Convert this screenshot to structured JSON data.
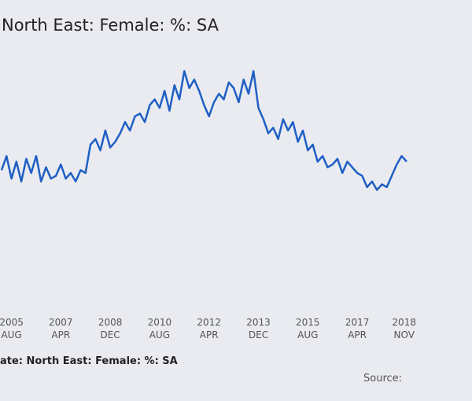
{
  "chart_data": {
    "type": "line",
    "title": "North East: Female: %: SA",
    "legend_label": "ate: North East: Female: %: SA",
    "source_label": "Source:",
    "x_ticks": [
      {
        "year": "2005",
        "month": "AUG"
      },
      {
        "year": "2007",
        "month": "APR"
      },
      {
        "year": "2008",
        "month": "DEC"
      },
      {
        "year": "2010",
        "month": "AUG"
      },
      {
        "year": "2012",
        "month": "APR"
      },
      {
        "year": "2013",
        "month": "DEC"
      },
      {
        "year": "2015",
        "month": "AUG"
      },
      {
        "year": "2017",
        "month": "APR"
      },
      {
        "year": "2018",
        "month": "NOV"
      }
    ],
    "xlim": [
      "2005-04",
      "2019-01"
    ],
    "ylim": [
      0,
      10
    ],
    "grid": false,
    "color": "#1f5fc4",
    "series": [
      {
        "x": [
          "2005-04",
          "2005-06",
          "2005-08",
          "2005-10",
          "2005-12",
          "2006-02",
          "2006-04",
          "2006-06",
          "2006-08",
          "2006-10",
          "2006-12",
          "2007-02",
          "2007-04",
          "2007-06",
          "2007-08",
          "2007-10",
          "2007-12",
          "2008-02",
          "2008-04",
          "2008-06",
          "2008-08",
          "2008-10",
          "2008-12",
          "2009-02",
          "2009-04",
          "2009-06",
          "2009-08",
          "2009-10",
          "2009-12",
          "2010-02",
          "2010-04",
          "2010-06",
          "2010-08",
          "2010-10",
          "2010-12",
          "2011-02",
          "2011-04",
          "2011-06",
          "2011-08",
          "2011-10",
          "2011-12",
          "2012-02",
          "2012-04",
          "2012-06",
          "2012-08",
          "2012-10",
          "2012-12",
          "2013-02",
          "2013-04",
          "2013-06",
          "2013-08",
          "2013-10",
          "2013-12",
          "2014-02",
          "2014-04",
          "2014-06",
          "2014-08",
          "2014-10",
          "2014-12",
          "2015-02",
          "2015-04",
          "2015-06",
          "2015-08",
          "2015-10",
          "2015-12",
          "2016-02",
          "2016-04",
          "2016-06",
          "2016-08",
          "2016-10",
          "2016-12",
          "2017-02",
          "2017-04",
          "2017-06",
          "2017-08",
          "2017-10",
          "2017-12",
          "2018-02",
          "2018-04",
          "2018-06",
          "2018-08",
          "2018-10",
          "2018-12"
        ],
        "y": [
          5.1,
          5.6,
          4.8,
          5.4,
          4.7,
          5.5,
          5.0,
          5.6,
          4.7,
          5.2,
          4.8,
          4.9,
          5.3,
          4.8,
          5.0,
          4.7,
          5.1,
          5.0,
          6.0,
          6.2,
          5.8,
          6.5,
          5.9,
          6.1,
          6.4,
          6.8,
          6.5,
          7.0,
          7.1,
          6.8,
          7.4,
          7.6,
          7.3,
          7.9,
          7.2,
          8.1,
          7.6,
          8.6,
          8.0,
          8.3,
          7.9,
          7.4,
          7.0,
          7.5,
          7.8,
          7.6,
          8.2,
          8.0,
          7.5,
          8.3,
          7.8,
          8.6,
          7.3,
          6.9,
          6.4,
          6.6,
          6.2,
          6.9,
          6.5,
          6.8,
          6.1,
          6.5,
          5.8,
          6.0,
          5.4,
          5.6,
          5.2,
          5.3,
          5.5,
          5.0,
          5.4,
          5.2,
          5.0,
          4.9,
          4.5,
          4.7,
          4.4,
          4.6,
          4.5,
          4.9,
          5.3,
          5.6,
          5.4
        ]
      }
    ]
  }
}
